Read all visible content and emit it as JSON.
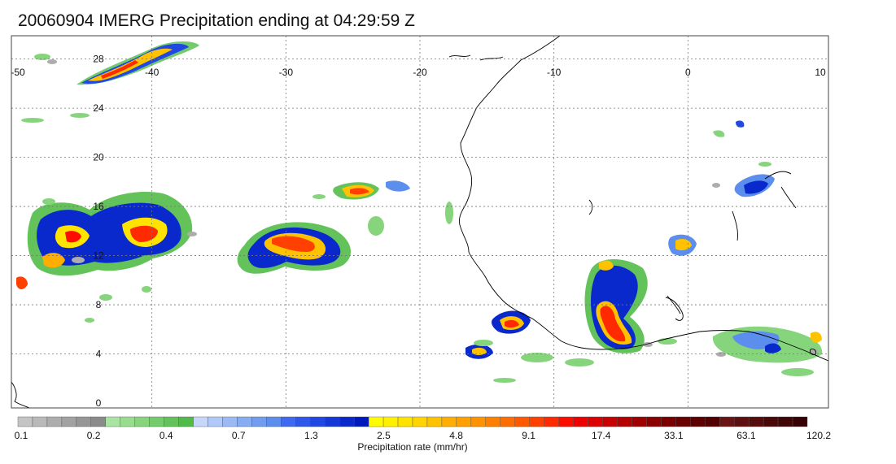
{
  "title": "20060904 IMERG Precipitation ending at 04:29:59 Z",
  "map": {
    "lon_range": [
      -50,
      10
    ],
    "lat_range": [
      0,
      30
    ],
    "lon_ticks": [
      "-50",
      "-40",
      "-30",
      "-20",
      "-10",
      "0",
      "10"
    ],
    "lat_ticks": [
      "0",
      "4",
      "8",
      "12",
      "16",
      "20",
      "24",
      "28"
    ],
    "grid": true,
    "coastline_color": "#000000"
  },
  "colorbar": {
    "title": "Precipitation rate (mm/hr)",
    "labels": [
      "0.1",
      "0.2",
      "0.4",
      "0.7",
      "1.3",
      "2.5",
      "4.8",
      "9.1",
      "17.4",
      "33.1",
      "63.1",
      "120.2"
    ],
    "colors": [
      "#c4c4c4",
      "#b9b9b9",
      "#adadad",
      "#a2a2a2",
      "#969696",
      "#8b8b8b",
      "#a9e4a0",
      "#98dc8e",
      "#86d47c",
      "#74cb6b",
      "#63c35a",
      "#52ba49",
      "#c6d7fa",
      "#b1c9f8",
      "#9bbaf5",
      "#86acf2",
      "#719df0",
      "#5c8eed",
      "#3d6af0",
      "#2f58ea",
      "#2148e2",
      "#1538d8",
      "#0a29cc",
      "#0019bd",
      "#fffb00",
      "#fff000",
      "#ffe300",
      "#ffd400",
      "#ffc200",
      "#ffad00",
      "#ffa000",
      "#ff9200",
      "#ff8000",
      "#ff6d00",
      "#ff5800",
      "#ff4000",
      "#ff2a00",
      "#ff0c00",
      "#ef0000",
      "#dc0000",
      "#c80000",
      "#b40000",
      "#a00000",
      "#8c0000",
      "#7a0000",
      "#6b0000",
      "#5e0000",
      "#520000",
      "#6a1515",
      "#5e1010",
      "#540c0c",
      "#4a0808",
      "#400505",
      "#360202"
    ]
  }
}
